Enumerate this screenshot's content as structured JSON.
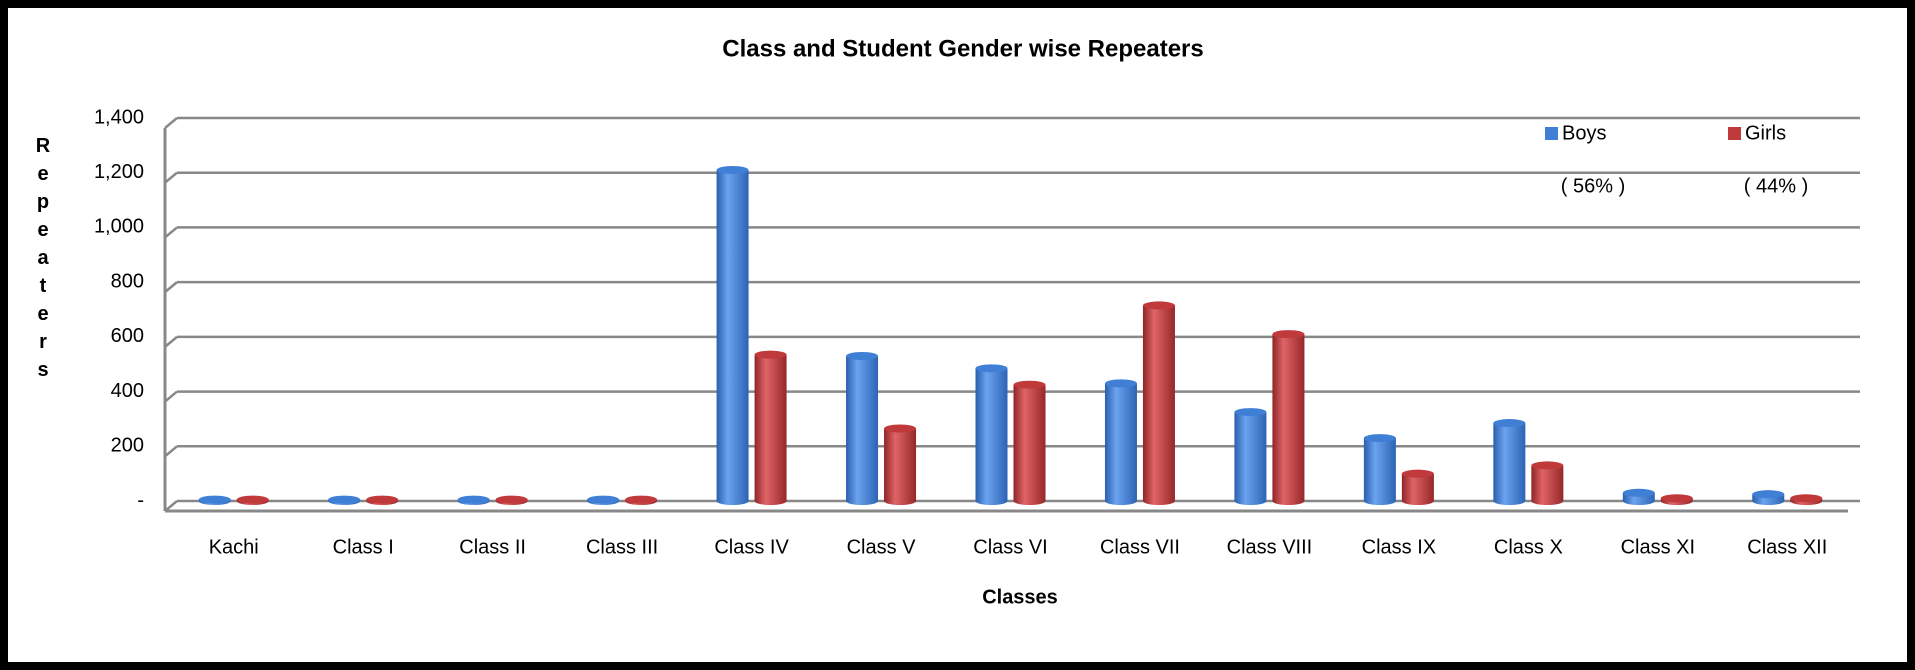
{
  "chart_data": {
    "type": "bar",
    "title": "Class and Student Gender wise Repeaters",
    "x_label": "Classes",
    "y_label": "Repeaters",
    "categories": [
      "Kachi",
      "Class I",
      "Class II",
      "Class III",
      "Class IV",
      "Class V",
      "Class VI",
      "Class VII",
      "Class VIII",
      "Class IX",
      "Class X",
      "Class XI",
      "Class XII"
    ],
    "series": [
      {
        "name": "Boys",
        "color": "#3f7fd6",
        "values": [
          5,
          5,
          5,
          5,
          1210,
          530,
          485,
          430,
          325,
          230,
          285,
          30,
          25
        ],
        "share": "( 56% )"
      },
      {
        "name": "Girls",
        "color": "#c0393b",
        "values": [
          5,
          5,
          5,
          5,
          535,
          265,
          425,
          715,
          610,
          100,
          130,
          10,
          10
        ],
        "share": "( 44% )"
      }
    ],
    "ylim": [
      0,
      1400
    ],
    "yticks": [
      {
        "value": 0,
        "label": "-"
      },
      200,
      400,
      600,
      800,
      {
        "value": 1000,
        "label": "1,000"
      },
      {
        "value": 1200,
        "label": "1,200"
      },
      {
        "value": 1400,
        "label": "1,400"
      }
    ],
    "grid": true,
    "legend": "top-right"
  }
}
